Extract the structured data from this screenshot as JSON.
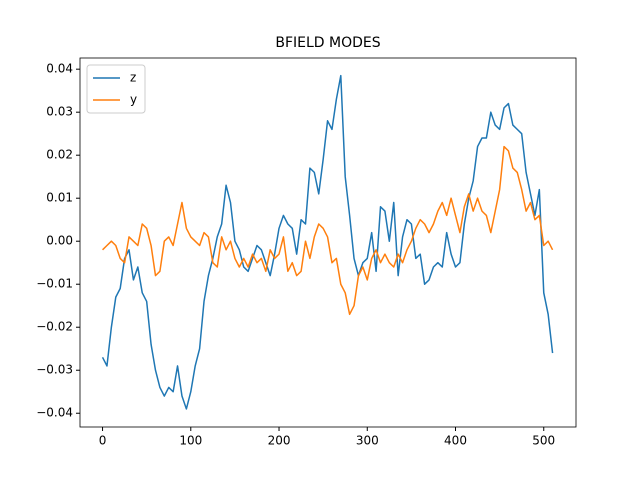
{
  "chart_data": {
    "type": "line",
    "title": "BFIELD MODES",
    "x": [
      0,
      5,
      10,
      15,
      20,
      25,
      30,
      35,
      40,
      45,
      50,
      55,
      60,
      65,
      70,
      75,
      80,
      85,
      90,
      95,
      100,
      105,
      110,
      115,
      120,
      125,
      130,
      135,
      140,
      145,
      150,
      155,
      160,
      165,
      170,
      175,
      180,
      185,
      190,
      195,
      200,
      205,
      210,
      215,
      220,
      225,
      230,
      235,
      240,
      245,
      250,
      255,
      260,
      265,
      270,
      275,
      280,
      285,
      290,
      295,
      300,
      305,
      310,
      315,
      320,
      325,
      330,
      335,
      340,
      345,
      350,
      355,
      360,
      365,
      370,
      375,
      380,
      385,
      390,
      395,
      400,
      405,
      410,
      415,
      420,
      425,
      430,
      435,
      440,
      445,
      450,
      455,
      460,
      465,
      470,
      475,
      480,
      485,
      490,
      495,
      500,
      505,
      510
    ],
    "series": [
      {
        "name": "z",
        "color": "#1f77b4",
        "values": [
          -0.027,
          -0.029,
          -0.02,
          -0.013,
          -0.011,
          -0.004,
          -0.002,
          -0.009,
          -0.006,
          -0.012,
          -0.014,
          -0.024,
          -0.03,
          -0.034,
          -0.036,
          -0.034,
          -0.035,
          -0.029,
          -0.036,
          -0.039,
          -0.035,
          -0.029,
          -0.025,
          -0.014,
          -0.008,
          -0.004,
          0.001,
          0.004,
          0.013,
          0.009,
          0.0,
          -0.002,
          -0.006,
          -0.007,
          -0.004,
          -0.001,
          -0.002,
          -0.005,
          -0.008,
          -0.003,
          0.003,
          0.006,
          0.004,
          0.003,
          -0.003,
          0.005,
          0.004,
          0.017,
          0.016,
          0.011,
          0.019,
          0.028,
          0.026,
          0.033,
          0.0385,
          0.015,
          0.006,
          -0.004,
          -0.008,
          -0.005,
          -0.004,
          0.002,
          -0.007,
          0.008,
          0.007,
          0.0,
          0.009,
          -0.008,
          0.001,
          0.005,
          0.004,
          -0.004,
          -0.003,
          -0.01,
          -0.009,
          -0.006,
          -0.005,
          -0.006,
          0.002,
          -0.003,
          -0.006,
          -0.005,
          0.004,
          0.01,
          0.014,
          0.022,
          0.024,
          0.024,
          0.03,
          0.027,
          0.026,
          0.031,
          0.032,
          0.027,
          0.026,
          0.025,
          0.016,
          0.011,
          0.006,
          0.012,
          -0.012,
          -0.017,
          -0.026
        ]
      },
      {
        "name": "y",
        "color": "#ff7f0e",
        "values": [
          -0.002,
          -0.001,
          0,
          -0.001,
          -0.004,
          -0.005,
          0.001,
          0,
          -0.001,
          0.004,
          0.003,
          -0.001,
          -0.008,
          -0.007,
          0,
          0.001,
          -0.001,
          0.004,
          0.009,
          0.003,
          0.001,
          0,
          -0.001,
          0.002,
          0.001,
          -0.005,
          -0.006,
          0.001,
          -0.002,
          0,
          -0.004,
          -0.006,
          -0.004,
          -0.006,
          -0.003,
          -0.005,
          -0.004,
          -0.007,
          -0.002,
          -0.004,
          -0.003,
          0.001,
          -0.007,
          -0.005,
          -0.008,
          -0.007,
          0,
          -0.004,
          0.001,
          0.004,
          0.003,
          0.001,
          -0.005,
          -0.004,
          -0.01,
          -0.012,
          -0.017,
          -0.015,
          -0.008,
          -0.006,
          -0.009,
          -0.004,
          -0.002,
          -0.005,
          -0.003,
          -0.005,
          -0.006,
          -0.003,
          -0.005,
          -0.002,
          0,
          0.003,
          0.005,
          0.004,
          0.002,
          0.004,
          0.007,
          0.009,
          0.006,
          0.01,
          0.006,
          0.002,
          0.008,
          0.011,
          0.007,
          0.01,
          0.007,
          0.006,
          0.002,
          0.007,
          0.012,
          0.022,
          0.021,
          0.017,
          0.016,
          0.012,
          0.007,
          0.009,
          0.005,
          0.006,
          -0.001,
          0,
          -0.002
        ]
      }
    ],
    "xlim": [
      -25.55,
      536.55
    ],
    "ylim": [
      -0.0432,
      0.0426
    ],
    "xticks": [
      0,
      100,
      200,
      300,
      400,
      500
    ],
    "yticks": [
      {
        "value": -0.04,
        "label": "−0.04"
      },
      {
        "value": -0.03,
        "label": "−0.03"
      },
      {
        "value": -0.02,
        "label": "−0.02"
      },
      {
        "value": -0.01,
        "label": "−0.01"
      },
      {
        "value": 0,
        "label": "0.00"
      },
      0.01,
      0.02,
      0.03,
      0.04
    ],
    "legend": "upper left",
    "grid": false
  }
}
